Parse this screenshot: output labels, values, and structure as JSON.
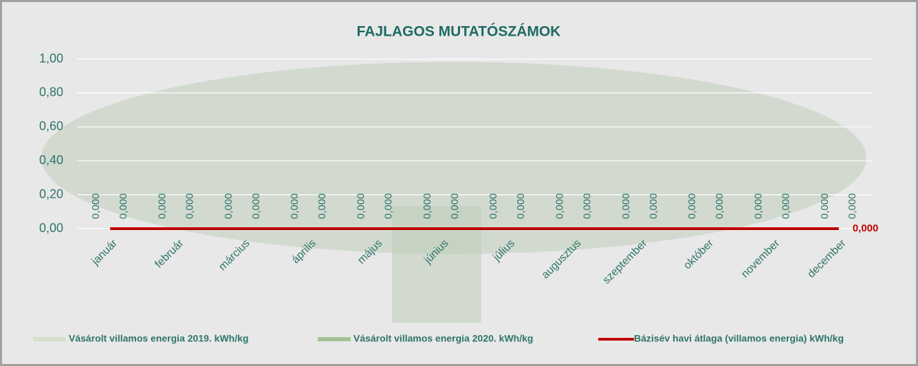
{
  "chart_data": {
    "type": "bar",
    "title": "FAJLAGOS MUTATÓSZÁMOK",
    "categories": [
      "január",
      "február",
      "március",
      "április",
      "május",
      "június",
      "július",
      "augusztus",
      "szeptember",
      "október",
      "november",
      "december"
    ],
    "series": [
      {
        "name": "Vásárolt villamos energia 2019. kWh/kg",
        "type": "bar",
        "color": "#d5e0cc",
        "values": [
          0,
          0,
          0,
          0,
          0,
          0,
          0,
          0,
          0,
          0,
          0,
          0
        ],
        "value_labels": [
          "0,000",
          "0,000",
          "0,000",
          "0,000",
          "0,000",
          "0,000",
          "0,000",
          "0,000",
          "0,000",
          "0,000",
          "0,000",
          "0,000"
        ]
      },
      {
        "name": "Vásárolt villamos energia 2020. kWh/kg",
        "type": "bar",
        "color": "#a3c293",
        "values": [
          0,
          0,
          0,
          0,
          0,
          0,
          0,
          0,
          0,
          0,
          0,
          0
        ],
        "value_labels": [
          "0,000",
          "0,000",
          "0,000",
          "0,000",
          "0,000",
          "0,000",
          "0,000",
          "0,000",
          "0,000",
          "0,000",
          "0,000",
          "0,000"
        ]
      },
      {
        "name": "Bázisév havi átlaga (villamos energia) kWh/kg",
        "type": "line",
        "color": "#c00000",
        "values": [
          0,
          0,
          0,
          0,
          0,
          0,
          0,
          0,
          0,
          0,
          0,
          0
        ],
        "value_labels": [
          null,
          null,
          null,
          null,
          null,
          null,
          null,
          null,
          null,
          null,
          null,
          "0,000"
        ]
      }
    ],
    "ylim": [
      0,
      1
    ],
    "yticks": [
      {
        "value": 0,
        "label": "0,00"
      },
      {
        "value": 0.2,
        "label": "0,20"
      },
      {
        "value": 0.4,
        "label": "0,40"
      },
      {
        "value": 0.6,
        "label": "0,60"
      },
      {
        "value": 0.8,
        "label": "0,80"
      },
      {
        "value": 1,
        "label": "1,00"
      }
    ],
    "grid": true,
    "legend": "bottom"
  }
}
